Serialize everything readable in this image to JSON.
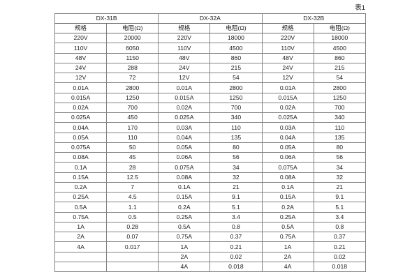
{
  "page": {
    "caption": "表1"
  },
  "table": {
    "groups": [
      {
        "name": "DX-31B",
        "spec_header": "规格",
        "res_header": "电阻(Ω)"
      },
      {
        "name": "DX-32A",
        "spec_header": "规格",
        "res_header": "电阻(Ω)"
      },
      {
        "name": "DX-32B",
        "spec_header": "规格",
        "res_header": "电阻(Ω)"
      }
    ],
    "rows": [
      [
        "220V",
        "20000",
        "220V",
        "18000",
        "220V",
        "18000"
      ],
      [
        "110V",
        "6050",
        "110V",
        "4500",
        "110V",
        "4500"
      ],
      [
        "48V",
        "1150",
        "48V",
        "860",
        "48V",
        "860"
      ],
      [
        "24V",
        "288",
        "24V",
        "215",
        "24V",
        "215"
      ],
      [
        "12V",
        "72",
        "12V",
        "54",
        "12V",
        "54"
      ],
      [
        "0.01A",
        "2800",
        "0.01A",
        "2800",
        "0.01A",
        "2800"
      ],
      [
        "0.015A",
        "1250",
        "0.015A",
        "1250",
        "0.015A",
        "1250"
      ],
      [
        "0.02A",
        "700",
        "0.02A",
        "700",
        "0.02A",
        "700"
      ],
      [
        "0.025A",
        "450",
        "0.025A",
        "340",
        "0.025A",
        "340"
      ],
      [
        "0.04A",
        "170",
        "0.03A",
        "110",
        "0.03A",
        "110"
      ],
      [
        "0.05A",
        "110",
        "0.04A",
        "135",
        "0.04A",
        "135"
      ],
      [
        "0.075A",
        "50",
        "0.05A",
        "80",
        "0.05A",
        "80"
      ],
      [
        "0.08A",
        "45",
        "0.06A",
        "56",
        "0.06A",
        "56"
      ],
      [
        "0.1A",
        "28",
        "0.075A",
        "34",
        "0.075A",
        "34"
      ],
      [
        "0.15A",
        "12.5",
        "0.08A",
        "32",
        "0.08A",
        "32"
      ],
      [
        "0.2A",
        "7",
        "0.1A",
        "21",
        "0.1A",
        "21"
      ],
      [
        "0.25A",
        "4.5",
        "0.15A",
        "9.1",
        "0.15A",
        "9.1"
      ],
      [
        "0.5A",
        "1.1",
        "0.2A",
        "5.1",
        "0.2A",
        "5.1"
      ],
      [
        "0.75A",
        "0.5",
        "0.25A",
        "3.4",
        "0.25A",
        "3.4"
      ],
      [
        "1A",
        "0.28",
        "0.5A",
        "0.8",
        "0.5A",
        "0.8"
      ],
      [
        "2A",
        "0.07",
        "0.75A",
        "0.37",
        "0.75A",
        "0.37"
      ],
      [
        "4A",
        "0.017",
        "1A",
        "0.21",
        "1A",
        "0.21"
      ],
      [
        "",
        "",
        "2A",
        "0.02",
        "2A",
        "0.02"
      ],
      [
        "",
        "",
        "4A",
        "0.018",
        "4A",
        "0.018"
      ]
    ]
  }
}
